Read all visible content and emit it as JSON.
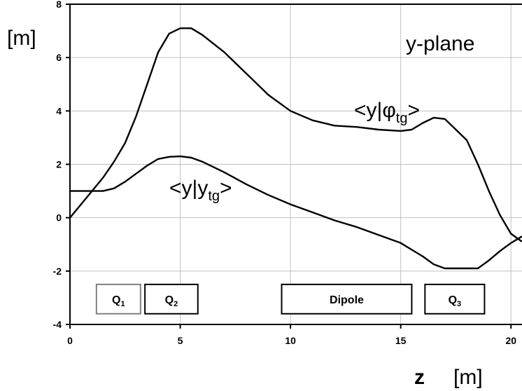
{
  "chart_data": {
    "type": "line",
    "xlabel": "z",
    "xunit": "[m]",
    "ylabel": "[m]",
    "xlim": [
      0,
      20.5
    ],
    "ylim": [
      -4,
      8
    ],
    "xticks": [
      "0",
      "5",
      "10",
      "15",
      "20"
    ],
    "yticks": [
      "8",
      "6",
      "4",
      "2",
      "0",
      "-2",
      "-4"
    ],
    "grid": true,
    "plane_label": "y-plane",
    "series": [
      {
        "name": "<y|φtg>",
        "label_main": "<y|",
        "label_symbol": "φ",
        "label_sub": "tg",
        "label_close": ">",
        "x": [
          0,
          0.5,
          1,
          1.5,
          2,
          2.5,
          3,
          3.5,
          4,
          4.5,
          5,
          5.5,
          6,
          7,
          8,
          9,
          10,
          11,
          12,
          13,
          14,
          15,
          15.5,
          16,
          16.5,
          17,
          17.5,
          18,
          18.5,
          19,
          19.5,
          20,
          20.5
        ],
        "y": [
          0,
          0.5,
          1.0,
          1.5,
          2.1,
          2.8,
          3.8,
          5.0,
          6.2,
          6.9,
          7.1,
          7.1,
          6.85,
          6.2,
          5.4,
          4.6,
          4.0,
          3.65,
          3.45,
          3.4,
          3.3,
          3.25,
          3.3,
          3.55,
          3.75,
          3.7,
          3.3,
          2.9,
          2.0,
          1.0,
          0.1,
          -0.6,
          -0.9
        ]
      },
      {
        "name": "<y|ytg>",
        "label_main": "<y|y",
        "label_sub": "tg",
        "label_close": ">",
        "x": [
          0,
          0.5,
          1,
          1.5,
          2,
          2.5,
          3,
          3.5,
          4,
          4.5,
          5,
          5.5,
          6,
          7,
          8,
          9,
          10,
          11,
          12,
          13,
          14,
          15,
          15.5,
          16,
          16.5,
          17,
          17.5,
          18,
          18.5,
          19,
          19.5,
          20,
          20.5
        ],
        "y": [
          1.0,
          1.0,
          1.0,
          1.0,
          1.1,
          1.35,
          1.65,
          1.95,
          2.2,
          2.28,
          2.3,
          2.25,
          2.1,
          1.7,
          1.25,
          0.85,
          0.5,
          0.2,
          -0.1,
          -0.35,
          -0.65,
          -0.95,
          -1.2,
          -1.45,
          -1.75,
          -1.9,
          -1.9,
          -1.9,
          -1.9,
          -1.6,
          -1.25,
          -0.95,
          -0.7
        ]
      }
    ],
    "elements": [
      {
        "main": "Q",
        "sub": "1",
        "z_start": 1.2,
        "z_end": 3.2,
        "stroke": "#808080"
      },
      {
        "main": "Q",
        "sub": "2",
        "z_start": 3.4,
        "z_end": 5.8,
        "stroke": "#000000"
      },
      {
        "main": "Dipole",
        "sub": "",
        "z_start": 9.6,
        "z_end": 15.5,
        "stroke": "#000000"
      },
      {
        "main": "Q",
        "sub": "3",
        "z_start": 16.1,
        "z_end": 18.8,
        "stroke": "#000000"
      }
    ],
    "element_band": [
      -3.6,
      -2.5
    ]
  }
}
